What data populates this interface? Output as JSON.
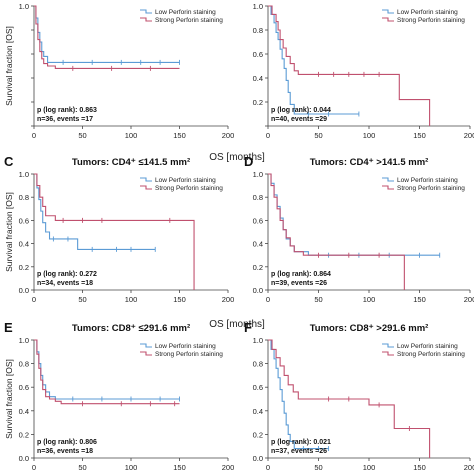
{
  "figure": {
    "shared_xlabel": "OS [months]",
    "legend": {
      "low": "Low Perforin staining",
      "strong": "Strong Perforin staining"
    },
    "colors": {
      "low": "#5b9bd5",
      "strong": "#c0506e"
    }
  },
  "chart_data": [
    {
      "panel": "A",
      "letter": "",
      "type": "line",
      "title": "",
      "xlabel": "",
      "ylabel": "Survival fraction [OS]",
      "xlim": [
        0,
        200
      ],
      "ylim": [
        0,
        1.0
      ],
      "x_ticks": [
        0,
        50,
        100,
        150,
        200
      ],
      "y_ticks": [
        0.0,
        0.2,
        0.4,
        0.6,
        0.8,
        1.0
      ],
      "y_tick_labels": [
        "",
        "",
        "",
        "",
        "",
        "1.0"
      ],
      "grid": false,
      "legend_position": "top-right",
      "stats": [
        "p (log rank): 0.863",
        "n=36, events =17"
      ],
      "series": [
        {
          "name": "Low Perforin staining",
          "color": "#5b9bd5",
          "x": [
            0,
            2,
            4,
            6,
            8,
            10,
            14,
            22,
            150
          ],
          "y": [
            1.0,
            0.9,
            0.78,
            0.7,
            0.62,
            0.58,
            0.53,
            0.53,
            0.53
          ],
          "censor_x": [
            30,
            60,
            90,
            110,
            130,
            150
          ]
        },
        {
          "name": "Strong Perforin staining",
          "color": "#c0506e",
          "x": [
            0,
            2,
            4,
            6,
            8,
            10,
            14,
            22,
            150
          ],
          "y": [
            1.0,
            0.85,
            0.72,
            0.62,
            0.56,
            0.52,
            0.5,
            0.48,
            0.48
          ],
          "censor_x": [
            40,
            80,
            120
          ]
        }
      ]
    },
    {
      "panel": "B",
      "letter": "",
      "type": "line",
      "title": "",
      "xlabel": "",
      "ylabel": "",
      "xlim": [
        0,
        200
      ],
      "ylim": [
        0,
        1.0
      ],
      "x_ticks": [
        0,
        50,
        100,
        150,
        200
      ],
      "y_ticks": [
        0.0,
        0.2,
        0.4,
        0.6,
        0.8,
        1.0
      ],
      "y_tick_labels": [
        "",
        "0.2",
        "0.4",
        "0.6",
        "0.8",
        "1.0"
      ],
      "grid": false,
      "legend_position": "top-right",
      "stats": [
        "p (log rank): 0.044",
        "n=40, events =29"
      ],
      "series": [
        {
          "name": "Low Perforin staining",
          "color": "#5b9bd5",
          "x": [
            0,
            3,
            6,
            8,
            10,
            12,
            14,
            16,
            18,
            20,
            22,
            26,
            90
          ],
          "y": [
            1.0,
            0.93,
            0.86,
            0.78,
            0.72,
            0.64,
            0.56,
            0.48,
            0.38,
            0.28,
            0.18,
            0.1,
            0.1
          ],
          "censor_x": [
            40,
            60,
            90
          ]
        },
        {
          "name": "Strong Perforin staining",
          "color": "#c0506e",
          "x": [
            0,
            4,
            8,
            10,
            12,
            15,
            18,
            22,
            26,
            30,
            130,
            160,
            160
          ],
          "y": [
            1.0,
            0.93,
            0.87,
            0.8,
            0.72,
            0.65,
            0.58,
            0.52,
            0.46,
            0.43,
            0.22,
            0.22,
            0.0
          ],
          "censor_x": [
            50,
            65,
            80,
            95,
            110
          ]
        }
      ]
    },
    {
      "panel": "C",
      "letter": "C",
      "type": "line",
      "title": "Tumors: CD4⁺ ≤141.5 mm²",
      "xlabel": "",
      "ylabel": "Survival fraction [OS]",
      "xlim": [
        0,
        200
      ],
      "ylim": [
        0,
        1.0
      ],
      "x_ticks": [
        0,
        50,
        100,
        150,
        200
      ],
      "y_ticks": [
        0.0,
        0.2,
        0.4,
        0.6,
        0.8,
        1.0
      ],
      "y_tick_labels": [
        "0.0",
        "0.2",
        "0.4",
        "0.6",
        "0.8",
        "1.0"
      ],
      "grid": false,
      "legend_position": "top-right",
      "stats": [
        "p (log rank): 0.272",
        "n=34, events =18"
      ],
      "series": [
        {
          "name": "Low Perforin staining",
          "color": "#5b9bd5",
          "x": [
            0,
            3,
            5,
            7,
            9,
            12,
            16,
            45,
            125
          ],
          "y": [
            1.0,
            0.88,
            0.78,
            0.68,
            0.58,
            0.5,
            0.44,
            0.35,
            0.35
          ],
          "censor_x": [
            20,
            35,
            60,
            85,
            100,
            125
          ]
        },
        {
          "name": "Strong Perforin staining",
          "color": "#c0506e",
          "x": [
            0,
            3,
            6,
            9,
            12,
            22,
            165,
            165
          ],
          "y": [
            1.0,
            0.9,
            0.8,
            0.72,
            0.64,
            0.6,
            0.6,
            0.0
          ],
          "censor_x": [
            30,
            50,
            70,
            140
          ]
        }
      ]
    },
    {
      "panel": "D",
      "letter": "D",
      "type": "line",
      "title": "Tumors: CD4⁺ >141.5 mm²",
      "xlabel": "",
      "ylabel": "",
      "xlim": [
        0,
        200
      ],
      "ylim": [
        0,
        1.0
      ],
      "x_ticks": [
        0,
        50,
        100,
        150,
        200
      ],
      "y_ticks": [
        0.0,
        0.2,
        0.4,
        0.6,
        0.8,
        1.0
      ],
      "y_tick_labels": [
        "0.0",
        "0.2",
        "0.4",
        "0.6",
        "0.8",
        "1.0"
      ],
      "grid": false,
      "legend_position": "top-right",
      "stats": [
        "p (log rank): 0.864",
        "n=39, events =26"
      ],
      "series": [
        {
          "name": "Low Perforin staining",
          "color": "#5b9bd5",
          "x": [
            0,
            3,
            6,
            9,
            12,
            15,
            18,
            22,
            26,
            40,
            170
          ],
          "y": [
            1.0,
            0.92,
            0.82,
            0.72,
            0.62,
            0.52,
            0.44,
            0.38,
            0.33,
            0.3,
            0.3
          ],
          "censor_x": [
            60,
            90,
            120,
            150,
            170
          ]
        },
        {
          "name": "Strong Perforin staining",
          "color": "#c0506e",
          "x": [
            0,
            3,
            6,
            9,
            12,
            15,
            18,
            22,
            26,
            35,
            135,
            135
          ],
          "y": [
            1.0,
            0.9,
            0.8,
            0.7,
            0.6,
            0.52,
            0.45,
            0.38,
            0.33,
            0.3,
            0.3,
            0.0
          ],
          "censor_x": [
            50,
            80,
            110
          ]
        }
      ]
    },
    {
      "panel": "E",
      "letter": "E",
      "type": "line",
      "title": "Tumors: CD8⁺ ≤291.6 mm²",
      "xlabel": "",
      "ylabel": "Survival fraction [OS]",
      "xlim": [
        0,
        200
      ],
      "ylim": [
        0,
        1.0
      ],
      "x_ticks": [
        0,
        50,
        100,
        150,
        200
      ],
      "y_ticks": [
        0.0,
        0.2,
        0.4,
        0.6,
        0.8,
        1.0
      ],
      "y_tick_labels": [
        "0.0",
        "0.2",
        "0.4",
        "0.6",
        "0.8",
        "1.0"
      ],
      "grid": false,
      "legend_position": "top-right",
      "stats": [
        "p (log rank): 0.806",
        "n=36, events =18"
      ],
      "series": [
        {
          "name": "Low Perforin staining",
          "color": "#5b9bd5",
          "x": [
            0,
            3,
            5,
            7,
            9,
            12,
            16,
            22,
            150
          ],
          "y": [
            1.0,
            0.9,
            0.8,
            0.7,
            0.62,
            0.56,
            0.52,
            0.5,
            0.5
          ],
          "censor_x": [
            40,
            70,
            100,
            130,
            150
          ]
        },
        {
          "name": "Strong Perforin staining",
          "color": "#c0506e",
          "x": [
            0,
            3,
            5,
            7,
            9,
            12,
            16,
            22,
            28,
            150
          ],
          "y": [
            1.0,
            0.88,
            0.76,
            0.66,
            0.58,
            0.52,
            0.5,
            0.48,
            0.46,
            0.46
          ],
          "censor_x": [
            50,
            90,
            120,
            145
          ]
        }
      ]
    },
    {
      "panel": "F",
      "letter": "F",
      "type": "line",
      "title": "Tumors: CD8⁺ >291.6 mm²",
      "xlabel": "",
      "ylabel": "",
      "xlim": [
        0,
        200
      ],
      "ylim": [
        0,
        1.0
      ],
      "x_ticks": [
        0,
        50,
        100,
        150,
        200
      ],
      "y_ticks": [
        0.0,
        0.2,
        0.4,
        0.6,
        0.8,
        1.0
      ],
      "y_tick_labels": [
        "0.0",
        "0.2",
        "0.4",
        "0.6",
        "0.8",
        "1.0"
      ],
      "grid": false,
      "legend_position": "top-right",
      "stats": [
        "p (log rank): 0.021",
        "n=37, events =26"
      ],
      "series": [
        {
          "name": "Low Perforin staining",
          "color": "#5b9bd5",
          "x": [
            0,
            3,
            6,
            8,
            10,
            12,
            14,
            16,
            18,
            20,
            22,
            26,
            60
          ],
          "y": [
            1.0,
            0.92,
            0.84,
            0.76,
            0.68,
            0.58,
            0.48,
            0.38,
            0.28,
            0.2,
            0.14,
            0.08,
            0.08
          ],
          "censor_x": [
            35,
            50,
            60
          ]
        },
        {
          "name": "Strong Perforin staining",
          "color": "#c0506e",
          "x": [
            0,
            4,
            8,
            12,
            16,
            20,
            25,
            30,
            38,
            100,
            125,
            160,
            160
          ],
          "y": [
            1.0,
            0.92,
            0.85,
            0.78,
            0.7,
            0.62,
            0.56,
            0.5,
            0.5,
            0.45,
            0.25,
            0.25,
            0.0
          ],
          "censor_x": [
            60,
            80,
            110,
            140
          ]
        }
      ]
    }
  ]
}
